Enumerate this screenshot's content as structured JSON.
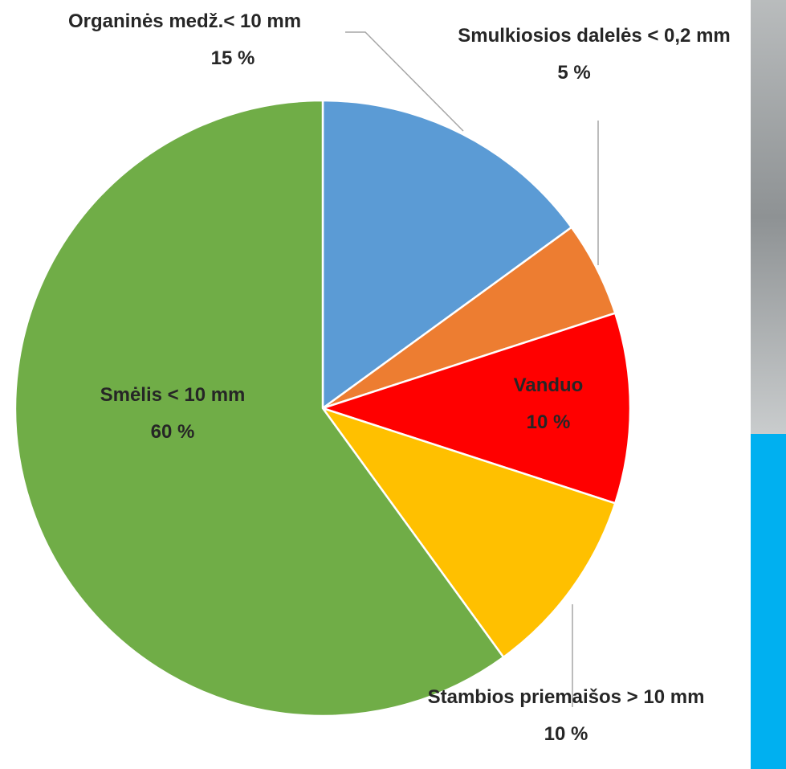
{
  "chart_data": {
    "type": "pie",
    "categories": [
      "Organinės medž.< 10 mm",
      "Smulkiosios dalelės < 0,2 mm",
      "Vanduo",
      "Stambios priemaišos > 10 mm",
      "Smėlis < 10 mm"
    ],
    "values": [
      15,
      5,
      10,
      10,
      60
    ],
    "value_labels": [
      "15 %",
      "5 %",
      "10 %",
      "10 %",
      "60 %"
    ],
    "colors": [
      "#5b9bd5",
      "#ed7d31",
      "#ff0000",
      "#ffc000",
      "#70ad47"
    ]
  }
}
